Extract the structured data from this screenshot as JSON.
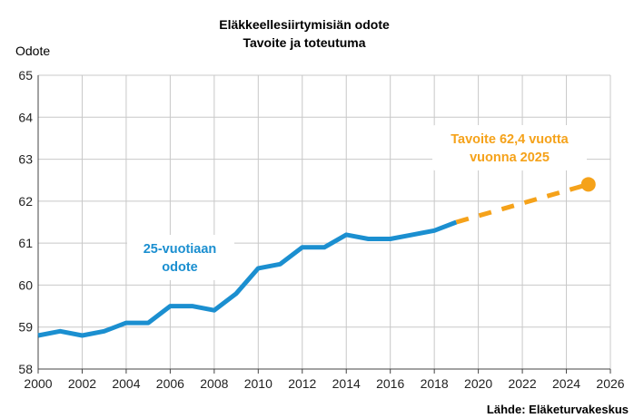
{
  "chart_data": {
    "type": "line",
    "title": [
      "Eläkkeellesiirtymisiän odote",
      "Tavoite ja toteutuma"
    ],
    "ylabel": "Odote",
    "xlim": [
      2000,
      2026
    ],
    "ylim": [
      58,
      65
    ],
    "x_ticks": [
      2000,
      2002,
      2004,
      2006,
      2008,
      2010,
      2012,
      2014,
      2016,
      2018,
      2020,
      2022,
      2024,
      2026
    ],
    "y_ticks": [
      58,
      59,
      60,
      61,
      62,
      63,
      64,
      65
    ],
    "grid": true,
    "series": [
      {
        "style": "solid",
        "color": "#1b8fd0",
        "x": [
          2000,
          2001,
          2002,
          2003,
          2004,
          2005,
          2006,
          2007,
          2008,
          2009,
          2010,
          2011,
          2012,
          2013,
          2014,
          2015,
          2016,
          2017,
          2018,
          2019
        ],
        "y": [
          58.8,
          58.9,
          58.8,
          58.9,
          59.1,
          59.1,
          59.5,
          59.5,
          59.4,
          59.8,
          60.4,
          60.5,
          60.9,
          60.9,
          61.2,
          61.1,
          61.1,
          61.2,
          61.3,
          61.5
        ]
      },
      {
        "style": "dashed",
        "color": "#f5a21a",
        "x": [
          2019,
          2025
        ],
        "y": [
          61.5,
          62.4
        ]
      }
    ],
    "annotations": [
      {
        "lines": [
          "25-vuotiaan",
          "odote"
        ],
        "color": "#1b8fd0"
      },
      {
        "lines": [
          "Tavoite 62,4 vuotta",
          "vuonna 2025"
        ],
        "color": "#f5a21a",
        "marker": {
          "x": 2025,
          "y": 62.4
        }
      }
    ],
    "source": "Lähde: Eläketurvakeskus"
  }
}
